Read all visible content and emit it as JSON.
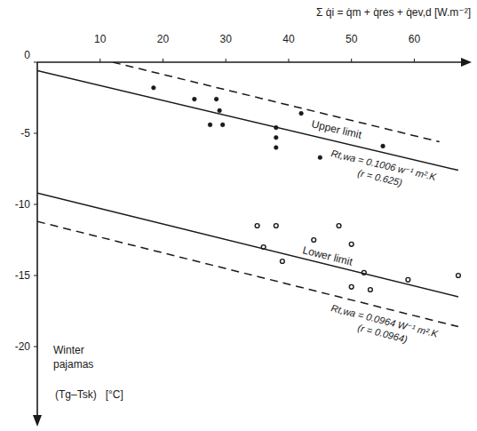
{
  "chart_data": {
    "type": "scatter",
    "x_label": "Σ q̇i = q̇m + q̇res + q̇ev,d [W.m⁻²]",
    "y_label": "(Tg–Tsk)   [°C]",
    "xlim": [
      0,
      68
    ],
    "ylim": [
      -25,
      0
    ],
    "xticks": [
      10,
      20,
      30,
      40,
      50,
      60
    ],
    "yticks": [
      0,
      -5,
      -10,
      -15,
      -20
    ],
    "grid": false,
    "series": [
      {
        "type": "scatter",
        "marker": "dot",
        "color": "#1a1a1a",
        "x": [
          18.5,
          25,
          28.5,
          29,
          27.5,
          29.5,
          38,
          38,
          38,
          42,
          45,
          55
        ],
        "values": [
          -1.8,
          -2.6,
          -2.6,
          -3.4,
          -4.4,
          -4.4,
          -4.6,
          -5.3,
          -6.0,
          -3.6,
          -6.7,
          -5.9
        ]
      },
      {
        "type": "scatter",
        "marker": "circle",
        "color": "#1a1a1a",
        "x": [
          35,
          36,
          38,
          39,
          44,
          48,
          50,
          50,
          52,
          53,
          59,
          67
        ],
        "values": [
          -11.5,
          -13.0,
          -11.5,
          -14.0,
          -12.5,
          -11.5,
          -12.8,
          -15.8,
          -14.8,
          -16.0,
          -15.3,
          -15.0
        ]
      },
      {
        "type": "line",
        "line_style": "dashed",
        "color": "#1a1a1a",
        "x": [
          12,
          64
        ],
        "values": [
          0,
          -5.6
        ]
      },
      {
        "type": "line",
        "line_style": "solid",
        "color": "#1a1a1a",
        "x": [
          0,
          67
        ],
        "values": [
          -0.6,
          -7.6
        ]
      },
      {
        "type": "line",
        "line_style": "solid",
        "color": "#1a1a1a",
        "x": [
          0,
          67
        ],
        "values": [
          -9.2,
          -16.5
        ]
      },
      {
        "type": "line",
        "line_style": "dashed",
        "color": "#1a1a1a",
        "x": [
          0,
          67
        ],
        "values": [
          -11.2,
          -18.6
        ]
      }
    ],
    "annotations": [
      "Upper limit",
      "Rt,wa = 0.1006 w⁻¹ m².K",
      "(r = 0.625)",
      "Lower limit",
      "Rt,wa = 0.0964 W⁻¹ m².K",
      "(r = 0.0964)",
      "Winter pajamas"
    ]
  }
}
